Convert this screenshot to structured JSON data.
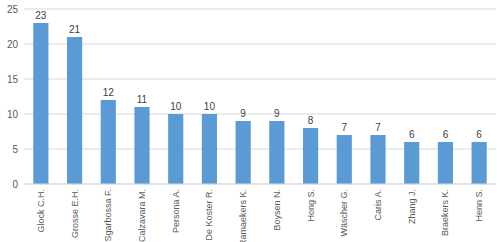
{
  "chart_data": {
    "type": "bar",
    "categories": [
      "Glock C.H.",
      "Grosse E.H.",
      "Sgarbossa F.",
      "Calzavara M.",
      "Persona A.",
      "De Koster R.",
      "Ramaekers K.",
      "Boysen N.",
      "Hong S.",
      "Wäscher G.",
      "Caris A.",
      "Zhang J.",
      "Braekers K.",
      "Henn S."
    ],
    "values": [
      23,
      21,
      12,
      11,
      10,
      10,
      9,
      9,
      8,
      7,
      7,
      6,
      6,
      6
    ],
    "color": "#5b9bd5",
    "ylim": [
      0,
      25
    ],
    "yticks": [
      0,
      5,
      10,
      15,
      20,
      25
    ],
    "grid": true,
    "data_labels": true
  }
}
